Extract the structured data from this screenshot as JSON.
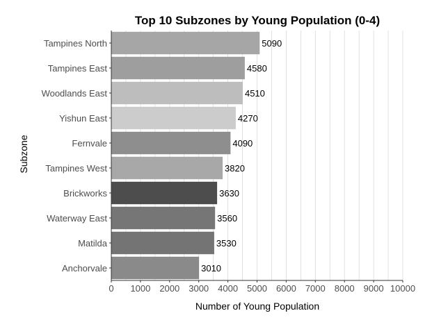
{
  "chart_data": {
    "type": "bar",
    "orientation": "horizontal",
    "title": "Top 10 Subzones by Young Population (0-4)",
    "xlabel": "Number of Young Population",
    "ylabel": "Subzone",
    "xlim": [
      0,
      10000
    ],
    "x_ticks": [
      0,
      1000,
      2000,
      3000,
      4000,
      5000,
      6000,
      7000,
      8000,
      9000,
      10000
    ],
    "grid": "vertical",
    "legend": "none",
    "categories": [
      "Tampines North",
      "Tampines East",
      "Woodlands East",
      "Yishun East",
      "Fernvale",
      "Tampines West",
      "Brickworks",
      "Waterway East",
      "Matilda",
      "Anchorvale"
    ],
    "values": [
      5090,
      4580,
      4510,
      4270,
      4090,
      3820,
      3630,
      3560,
      3530,
      3010
    ],
    "bar_colors": [
      "#a6a6a6",
      "#9e9e9e",
      "#bdbdbd",
      "#cccccc",
      "#8e8e8e",
      "#a8a8a8",
      "#4d4d4d",
      "#767676",
      "#747474",
      "#8a8a8a"
    ]
  }
}
